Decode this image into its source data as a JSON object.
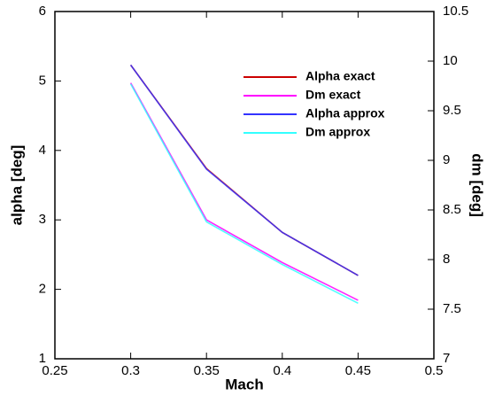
{
  "chart_data": {
    "type": "line",
    "x_label": "Mach",
    "y_label": "alpha [deg]",
    "y2_label": "dm [deg]",
    "x": [
      0.3,
      0.35,
      0.4,
      0.45
    ],
    "series": [
      {
        "name": "Alpha exact",
        "color": "#cc0000",
        "values": [
          5.23,
          3.74,
          2.82,
          2.2
        ]
      },
      {
        "name": "Dm exact",
        "color": "#ff00ff",
        "axis": "y2",
        "values": [
          9.78,
          8.4,
          7.97,
          7.59
        ]
      },
      {
        "name": "Alpha approx",
        "color": "#3333ff",
        "values": [
          5.23,
          3.73,
          2.82,
          2.2
        ]
      },
      {
        "name": "Dm approx",
        "color": "#33ffff",
        "axis": "y2",
        "values": [
          9.77,
          8.38,
          7.95,
          7.56
        ]
      }
    ],
    "xlim": [
      0.25,
      0.5
    ],
    "xticks": [
      0.25,
      0.3,
      0.35,
      0.4,
      0.45,
      0.5
    ],
    "ylim": [
      1,
      6
    ],
    "yticks": [
      1,
      2,
      3,
      4,
      5,
      6
    ],
    "y2lim": [
      7,
      10.5
    ],
    "y2ticks": [
      7,
      7.5,
      8,
      8.5,
      9,
      9.5,
      10,
      10.5
    ],
    "grid": false,
    "legend": "upper right"
  }
}
